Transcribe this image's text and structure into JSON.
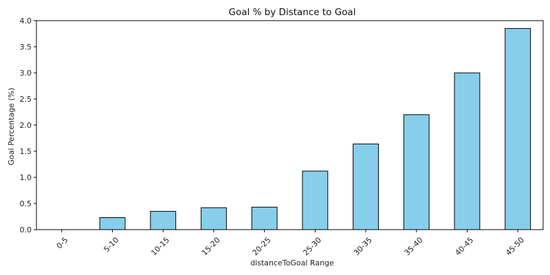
{
  "chart_data": {
    "type": "bar",
    "title": "Goal % by Distance to Goal",
    "xlabel": "distanceToGoal Range",
    "ylabel": "Goal Percentage (%)",
    "categories": [
      "0-5",
      "5-10",
      "10-15",
      "15-20",
      "20-25",
      "25-30",
      "30-35",
      "35-40",
      "40-45",
      "45-50"
    ],
    "values": [
      0.0,
      0.23,
      0.35,
      0.42,
      0.43,
      1.12,
      1.64,
      2.2,
      3.0,
      3.85
    ],
    "ylim": [
      0,
      4.0
    ],
    "yticks": [
      "0.0",
      "0.5",
      "1.0",
      "1.5",
      "2.0",
      "2.5",
      "3.0",
      "3.5",
      "4.0"
    ],
    "grid": false,
    "bar_color": "#87ceeb",
    "bar_edge_color": "#000000"
  }
}
